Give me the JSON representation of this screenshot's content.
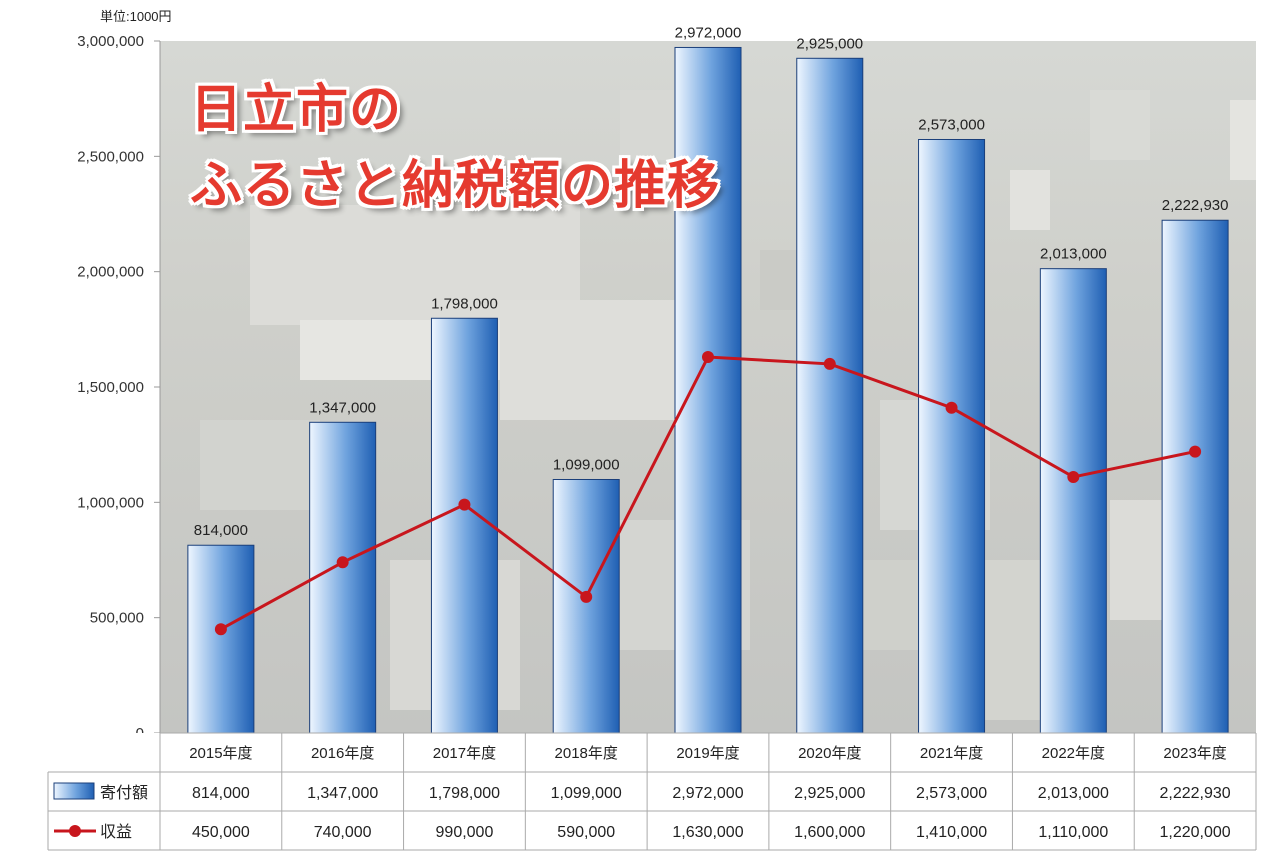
{
  "unit_label": "単位:1000円",
  "chart_data": {
    "type": "bar",
    "title_lines": [
      "日立市の",
      "ふるさと納税額の推移"
    ],
    "categories": [
      "2015年度",
      "2016年度",
      "2017年度",
      "2018年度",
      "2019年度",
      "2020年度",
      "2021年度",
      "2022年度",
      "2023年度"
    ],
    "ylim": [
      0,
      3000000
    ],
    "yticks": [
      0,
      500000,
      1000000,
      1500000,
      2000000,
      2500000,
      3000000
    ],
    "ytick_labels": [
      "0",
      "500,000",
      "1,000,000",
      "1,500,000",
      "2,000,000",
      "2,500,000",
      "3,000,000"
    ],
    "series": [
      {
        "name": "寄付額",
        "kind": "bar",
        "color": "#2a6cbf",
        "values": [
          814000,
          1347000,
          1798000,
          1099000,
          2972000,
          2925000,
          2573000,
          2013000,
          2222930
        ],
        "labels": [
          "814,000",
          "1,347,000",
          "1,798,000",
          "1,099,000",
          "2,972,000",
          "2,925,000",
          "2,573,000",
          "2,013,000",
          "2,222,930"
        ]
      },
      {
        "name": "収益",
        "kind": "line",
        "color": "#c8161d",
        "values": [
          450000,
          740000,
          990000,
          590000,
          1630000,
          1600000,
          1410000,
          1110000,
          1220000
        ],
        "labels": [
          "450,000",
          "740,000",
          "990,000",
          "590,000",
          "1,630,000",
          "1,600,000",
          "1,410,000",
          "1,110,000",
          "1,220,000"
        ]
      }
    ],
    "grid": false,
    "legend": "data-table"
  }
}
